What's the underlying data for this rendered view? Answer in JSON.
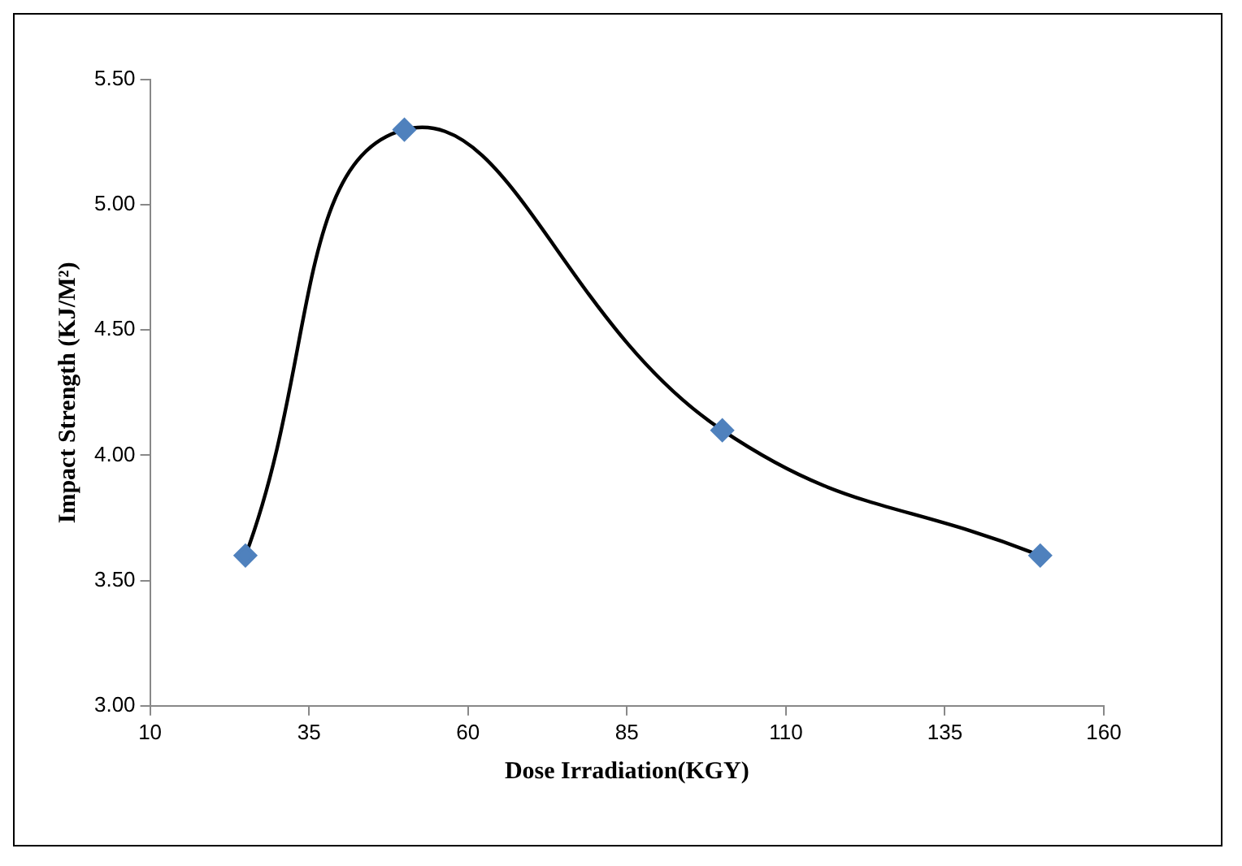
{
  "chart_data": {
    "type": "line",
    "xlabel": "Dose Irradiation(KGY)",
    "ylabel": "Impact Strength (KJ/M²)",
    "x": [
      25,
      50,
      100,
      150
    ],
    "series": [
      {
        "color": "#000000",
        "values": [
          3.6,
          5.3,
          4.1,
          3.6
        ]
      }
    ],
    "marker": "diamond",
    "line_style": "solid",
    "grid": false,
    "legend": false,
    "xlim": [
      10,
      160
    ],
    "xticks": [
      10,
      35,
      60,
      85,
      110,
      135,
      160
    ],
    "ylim": [
      3,
      5.5
    ],
    "yticks": [
      {
        "value": 3,
        "label": "3.00"
      },
      {
        "value": 3.5,
        "label": "3.50"
      },
      {
        "value": 4,
        "label": "4.00"
      },
      {
        "value": 4.5,
        "label": "4.50"
      },
      {
        "value": 5,
        "label": "5.00"
      },
      {
        "value": 5.5,
        "label": "5.50"
      }
    ]
  }
}
